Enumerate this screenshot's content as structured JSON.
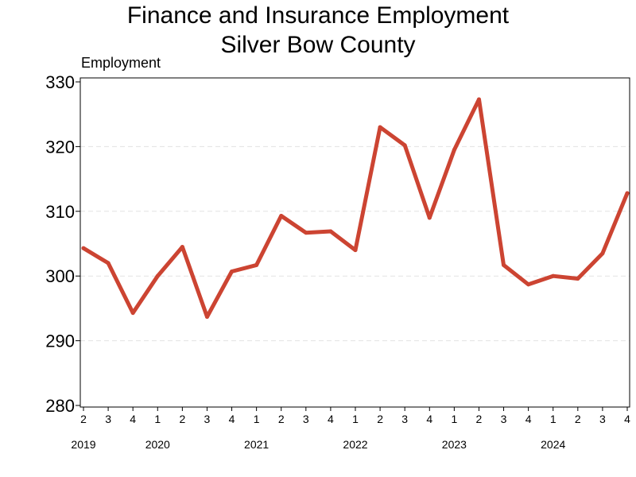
{
  "chart_data": {
    "type": "line",
    "title": "Finance and Insurance Employment",
    "subtitle": "Silver Bow County",
    "ylabel": "Employment",
    "ylim": [
      280,
      330
    ],
    "yticks": [
      280,
      290,
      300,
      310,
      320,
      330
    ],
    "grid": "horizontal dashed",
    "line_color": "#CC4432",
    "x": [
      {
        "quarter": "2",
        "year": "2019"
      },
      {
        "quarter": "3",
        "year": "2019"
      },
      {
        "quarter": "4",
        "year": "2019"
      },
      {
        "quarter": "1",
        "year": "2020"
      },
      {
        "quarter": "2",
        "year": "2020"
      },
      {
        "quarter": "3",
        "year": "2020"
      },
      {
        "quarter": "4",
        "year": "2020"
      },
      {
        "quarter": "1",
        "year": "2021"
      },
      {
        "quarter": "2",
        "year": "2021"
      },
      {
        "quarter": "3",
        "year": "2021"
      },
      {
        "quarter": "4",
        "year": "2021"
      },
      {
        "quarter": "1",
        "year": "2022"
      },
      {
        "quarter": "2",
        "year": "2022"
      },
      {
        "quarter": "3",
        "year": "2022"
      },
      {
        "quarter": "4",
        "year": "2022"
      },
      {
        "quarter": "1",
        "year": "2023"
      },
      {
        "quarter": "2",
        "year": "2023"
      },
      {
        "quarter": "3",
        "year": "2023"
      },
      {
        "quarter": "4",
        "year": "2023"
      },
      {
        "quarter": "1",
        "year": "2024"
      },
      {
        "quarter": "2",
        "year": "2024"
      },
      {
        "quarter": "3",
        "year": "2024"
      },
      {
        "quarter": "4",
        "year": "2024"
      }
    ],
    "year_labels": [
      "2019",
      "2020",
      "2021",
      "2022",
      "2023",
      "2024"
    ],
    "series": [
      {
        "values": [
          304.3,
          302.0,
          294.3,
          300.0,
          304.5,
          293.7,
          300.7,
          301.7,
          309.3,
          306.7,
          306.9,
          304.0,
          323.0,
          320.2,
          309.0,
          319.5,
          327.3,
          301.7,
          298.7,
          300.0,
          299.6,
          303.5,
          312.8
        ]
      }
    ]
  }
}
